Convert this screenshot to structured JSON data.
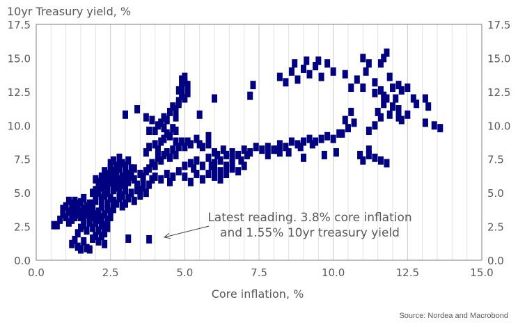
{
  "chart_data": {
    "type": "scatter",
    "title": "10yr Treasury yield, %",
    "xlabel": "Core inflation, %",
    "ylabel": "10yr Treasury yield, %",
    "xlim": [
      0,
      15
    ],
    "ylim": [
      0,
      17.5
    ],
    "xticks": [
      "0.0",
      "2.5",
      "5.0",
      "7.5",
      "10.0",
      "12.5",
      "15.0"
    ],
    "yticks": [
      "0.0",
      "2.5",
      "5.0",
      "7.5",
      "10.0",
      "12.5",
      "15.0",
      "17.5"
    ],
    "grid": "vertical",
    "marker_color": "#000080",
    "annotation": {
      "line1": "Latest reading. 3.8% core inflation",
      "line2": "and 1.55% 10yr treasury yield",
      "target": [
        3.8,
        1.55
      ]
    },
    "points": [
      [
        0.6,
        2.6
      ],
      [
        0.7,
        2.6
      ],
      [
        0.8,
        3.0
      ],
      [
        0.9,
        3.4
      ],
      [
        0.9,
        3.8
      ],
      [
        1.0,
        4.0
      ],
      [
        1.0,
        3.2
      ],
      [
        1.1,
        3.6
      ],
      [
        1.1,
        2.8
      ],
      [
        1.2,
        4.2
      ],
      [
        1.2,
        3.0
      ],
      [
        1.3,
        3.8
      ],
      [
        1.3,
        4.4
      ],
      [
        1.4,
        3.4
      ],
      [
        1.4,
        4.0
      ],
      [
        1.5,
        3.6
      ],
      [
        1.5,
        4.3
      ],
      [
        1.6,
        3.8
      ],
      [
        1.6,
        4.6
      ],
      [
        1.7,
        4.0
      ],
      [
        1.2,
        1.2
      ],
      [
        1.3,
        1.5
      ],
      [
        1.4,
        1.0
      ],
      [
        1.5,
        0.8
      ],
      [
        1.6,
        1.4
      ],
      [
        1.7,
        0.9
      ],
      [
        1.8,
        0.8
      ],
      [
        1.9,
        1.6
      ],
      [
        2.0,
        1.8
      ],
      [
        2.1,
        1.4
      ],
      [
        1.4,
        2.0
      ],
      [
        1.5,
        2.4
      ],
      [
        1.6,
        2.6
      ],
      [
        1.7,
        2.2
      ],
      [
        1.8,
        2.8
      ],
      [
        1.9,
        2.4
      ],
      [
        1.9,
        3.2
      ],
      [
        2.0,
        2.8
      ],
      [
        2.1,
        2.2
      ],
      [
        2.2,
        2.6
      ],
      [
        1.8,
        4.2
      ],
      [
        1.9,
        3.8
      ],
      [
        2.0,
        4.4
      ],
      [
        2.1,
        3.6
      ],
      [
        2.2,
        4.0
      ],
      [
        2.3,
        3.4
      ],
      [
        2.3,
        2.0
      ],
      [
        2.4,
        3.0
      ],
      [
        2.4,
        4.2
      ],
      [
        2.5,
        3.6
      ],
      [
        1.6,
        3.0
      ],
      [
        1.7,
        3.4
      ],
      [
        1.8,
        3.6
      ],
      [
        2.0,
        3.4
      ],
      [
        2.1,
        3.0
      ],
      [
        2.2,
        3.2
      ],
      [
        2.2,
        1.8
      ],
      [
        2.3,
        1.2
      ],
      [
        2.3,
        2.6
      ],
      [
        2.4,
        2.4
      ],
      [
        2.0,
        4.8
      ],
      [
        2.1,
        5.0
      ],
      [
        2.2,
        5.4
      ],
      [
        2.3,
        5.2
      ],
      [
        2.3,
        5.8
      ],
      [
        2.4,
        5.0
      ],
      [
        2.4,
        5.6
      ],
      [
        2.5,
        4.6
      ],
      [
        2.5,
        5.8
      ],
      [
        2.6,
        5.2
      ],
      [
        2.0,
        6.0
      ],
      [
        2.1,
        5.8
      ],
      [
        2.2,
        6.2
      ],
      [
        2.3,
        6.6
      ],
      [
        2.4,
        6.4
      ],
      [
        2.5,
        6.8
      ],
      [
        2.6,
        6.2
      ],
      [
        2.6,
        5.6
      ],
      [
        2.7,
        5.8
      ],
      [
        2.7,
        6.6
      ],
      [
        2.5,
        7.2
      ],
      [
        2.6,
        7.4
      ],
      [
        2.7,
        7.0
      ],
      [
        2.8,
        7.6
      ],
      [
        2.8,
        6.8
      ],
      [
        2.9,
        7.2
      ],
      [
        3.0,
        7.0
      ],
      [
        3.0,
        6.4
      ],
      [
        3.1,
        7.4
      ],
      [
        3.2,
        6.8
      ],
      [
        2.8,
        6.0
      ],
      [
        2.9,
        5.6
      ],
      [
        3.0,
        5.4
      ],
      [
        3.1,
        5.8
      ],
      [
        3.2,
        6.2
      ],
      [
        3.3,
        6.0
      ],
      [
        3.4,
        5.6
      ],
      [
        3.5,
        6.4
      ],
      [
        3.6,
        6.2
      ],
      [
        3.7,
        6.6
      ],
      [
        2.8,
        5.0
      ],
      [
        2.9,
        4.8
      ],
      [
        3.0,
        5.2
      ],
      [
        3.1,
        4.6
      ],
      [
        3.2,
        5.0
      ],
      [
        3.3,
        4.4
      ],
      [
        3.4,
        5.2
      ],
      [
        3.5,
        4.8
      ],
      [
        3.6,
        5.4
      ],
      [
        3.7,
        5.0
      ],
      [
        3.8,
        6.8
      ],
      [
        3.9,
        7.2
      ],
      [
        4.0,
        7.0
      ],
      [
        4.1,
        7.6
      ],
      [
        4.2,
        7.4
      ],
      [
        4.3,
        7.8
      ],
      [
        4.4,
        8.0
      ],
      [
        4.5,
        7.6
      ],
      [
        4.6,
        8.2
      ],
      [
        4.7,
        7.8
      ],
      [
        3.7,
        8.0
      ],
      [
        3.8,
        8.4
      ],
      [
        4.0,
        8.6
      ],
      [
        4.1,
        8.2
      ],
      [
        4.2,
        8.8
      ],
      [
        4.3,
        9.0
      ],
      [
        4.4,
        9.4
      ],
      [
        4.5,
        9.2
      ],
      [
        4.6,
        9.8
      ],
      [
        4.7,
        9.6
      ],
      [
        4.0,
        9.6
      ],
      [
        4.1,
        10.0
      ],
      [
        4.2,
        10.2
      ],
      [
        4.3,
        10.6
      ],
      [
        4.4,
        10.4
      ],
      [
        4.5,
        11.0
      ],
      [
        4.6,
        11.4
      ],
      [
        4.7,
        11.2
      ],
      [
        4.8,
        11.8
      ],
      [
        4.9,
        12.2
      ],
      [
        4.8,
        12.6
      ],
      [
        4.9,
        12.8
      ],
      [
        5.0,
        13.2
      ],
      [
        5.0,
        13.6
      ],
      [
        5.1,
        13.0
      ],
      [
        5.1,
        12.4
      ],
      [
        4.9,
        13.4
      ],
      [
        5.0,
        12.0
      ],
      [
        4.8,
        11.6
      ],
      [
        4.7,
        10.6
      ],
      [
        3.0,
        10.8
      ],
      [
        3.4,
        11.2
      ],
      [
        3.7,
        10.6
      ],
      [
        3.8,
        9.6
      ],
      [
        3.9,
        10.4
      ],
      [
        4.3,
        9.8
      ],
      [
        5.5,
        10.8
      ],
      [
        6.0,
        12.0
      ],
      [
        7.3,
        13.0
      ],
      [
        7.2,
        12.2
      ],
      [
        4.7,
        8.8
      ],
      [
        4.8,
        8.4
      ],
      [
        4.9,
        8.8
      ],
      [
        5.0,
        8.4
      ],
      [
        5.1,
        8.8
      ],
      [
        5.2,
        8.6
      ],
      [
        5.4,
        9.0
      ],
      [
        5.5,
        8.6
      ],
      [
        5.6,
        8.4
      ],
      [
        5.8,
        8.6
      ],
      [
        4.0,
        6.2
      ],
      [
        4.2,
        6.0
      ],
      [
        4.4,
        6.4
      ],
      [
        4.5,
        5.8
      ],
      [
        4.6,
        6.2
      ],
      [
        4.8,
        6.6
      ],
      [
        5.0,
        6.2
      ],
      [
        5.2,
        5.8
      ],
      [
        5.4,
        6.4
      ],
      [
        5.6,
        6.0
      ],
      [
        5.0,
        7.0
      ],
      [
        5.2,
        7.2
      ],
      [
        5.4,
        7.4
      ],
      [
        5.6,
        7.0
      ],
      [
        5.8,
        7.6
      ],
      [
        6.0,
        7.2
      ],
      [
        6.2,
        7.4
      ],
      [
        6.4,
        7.8
      ],
      [
        6.6,
        7.6
      ],
      [
        6.8,
        7.8
      ],
      [
        5.8,
        6.4
      ],
      [
        6.0,
        6.8
      ],
      [
        6.2,
        6.6
      ],
      [
        6.4,
        6.4
      ],
      [
        6.6,
        6.8
      ],
      [
        6.8,
        6.6
      ],
      [
        7.0,
        7.0
      ],
      [
        6.2,
        6.0
      ],
      [
        6.0,
        6.2
      ],
      [
        6.6,
        7.2
      ],
      [
        7.0,
        8.2
      ],
      [
        7.2,
        8.0
      ],
      [
        7.4,
        8.4
      ],
      [
        7.6,
        8.2
      ],
      [
        7.8,
        8.4
      ],
      [
        8.0,
        8.2
      ],
      [
        8.2,
        8.6
      ],
      [
        8.4,
        8.4
      ],
      [
        8.6,
        8.8
      ],
      [
        8.8,
        8.6
      ],
      [
        9.0,
        8.8
      ],
      [
        9.2,
        9.0
      ],
      [
        9.4,
        8.8
      ],
      [
        9.6,
        9.0
      ],
      [
        9.8,
        9.2
      ],
      [
        10.0,
        9.0
      ],
      [
        10.2,
        9.4
      ],
      [
        8.2,
        8.0
      ],
      [
        7.8,
        7.8
      ],
      [
        9.0,
        7.6
      ],
      [
        6.0,
        8.0
      ],
      [
        6.3,
        8.2
      ],
      [
        6.6,
        8.0
      ],
      [
        6.9,
        7.4
      ],
      [
        7.1,
        7.8
      ],
      [
        5.8,
        9.2
      ],
      [
        6.1,
        7.8
      ],
      [
        5.3,
        6.8
      ],
      [
        5.9,
        7.0
      ],
      [
        6.4,
        7.0
      ],
      [
        8.2,
        13.6
      ],
      [
        8.4,
        13.2
      ],
      [
        8.6,
        14.0
      ],
      [
        8.8,
        13.4
      ],
      [
        9.0,
        14.2
      ],
      [
        9.2,
        13.8
      ],
      [
        9.4,
        14.4
      ],
      [
        9.6,
        13.6
      ],
      [
        9.8,
        14.6
      ],
      [
        10.0,
        14.0
      ],
      [
        8.7,
        14.6
      ],
      [
        9.1,
        14.8
      ],
      [
        9.5,
        14.8
      ],
      [
        10.4,
        13.8
      ],
      [
        10.6,
        12.8
      ],
      [
        10.8,
        13.4
      ],
      [
        11.0,
        12.8
      ],
      [
        11.0,
        15.0
      ],
      [
        11.1,
        14.0
      ],
      [
        11.2,
        14.6
      ],
      [
        11.4,
        13.2
      ],
      [
        11.6,
        12.6
      ],
      [
        11.6,
        14.6
      ],
      [
        11.7,
        15.0
      ],
      [
        11.8,
        15.4
      ],
      [
        11.9,
        13.6
      ],
      [
        12.0,
        12.8
      ],
      [
        12.1,
        12.0
      ],
      [
        12.2,
        13.0
      ],
      [
        12.3,
        12.6
      ],
      [
        11.5,
        11.0
      ],
      [
        11.6,
        10.6
      ],
      [
        11.7,
        11.6
      ],
      [
        11.8,
        12.0
      ],
      [
        11.9,
        10.8
      ],
      [
        12.0,
        11.4
      ],
      [
        12.2,
        11.2
      ],
      [
        12.3,
        10.4
      ],
      [
        12.5,
        12.8
      ],
      [
        12.7,
        12.0
      ],
      [
        13.1,
        12.0
      ],
      [
        13.2,
        11.4
      ],
      [
        13.1,
        10.2
      ],
      [
        13.4,
        10.0
      ],
      [
        13.6,
        9.8
      ],
      [
        12.2,
        10.6
      ],
      [
        11.4,
        12.4
      ],
      [
        12.8,
        11.6
      ],
      [
        12.5,
        10.8
      ],
      [
        11.7,
        12.2
      ],
      [
        10.4,
        10.4
      ],
      [
        10.5,
        9.8
      ],
      [
        10.6,
        11.0
      ],
      [
        10.7,
        10.2
      ],
      [
        11.4,
        10.0
      ],
      [
        11.2,
        9.6
      ],
      [
        10.3,
        9.4
      ],
      [
        11.0,
        7.4
      ],
      [
        11.2,
        7.8
      ],
      [
        11.4,
        7.6
      ],
      [
        11.6,
        7.4
      ],
      [
        11.8,
        7.2
      ],
      [
        11.2,
        8.2
      ],
      [
        10.9,
        7.8
      ],
      [
        8.1,
        8.2
      ],
      [
        8.5,
        8.0
      ],
      [
        8.9,
        8.4
      ],
      [
        9.3,
        8.6
      ],
      [
        9.7,
        7.8
      ],
      [
        10.1,
        8.0
      ],
      [
        2.7,
        5.4
      ],
      [
        2.8,
        5.6
      ],
      [
        2.9,
        6.2
      ],
      [
        3.0,
        5.8
      ],
      [
        3.1,
        6.4
      ],
      [
        3.3,
        6.8
      ],
      [
        3.5,
        5.2
      ],
      [
        3.6,
        5.8
      ],
      [
        3.8,
        5.6
      ],
      [
        3.9,
        6.0
      ],
      [
        2.6,
        4.4
      ],
      [
        2.7,
        4.2
      ],
      [
        2.8,
        4.6
      ],
      [
        2.9,
        4.0
      ],
      [
        3.0,
        4.2
      ],
      [
        2.4,
        3.8
      ],
      [
        2.5,
        3.2
      ],
      [
        2.6,
        3.8
      ],
      [
        2.2,
        4.6
      ],
      [
        2.3,
        4.8
      ],
      [
        2.0,
        5.2
      ],
      [
        1.9,
        5.0
      ],
      [
        2.1,
        5.6
      ],
      [
        2.2,
        6.0
      ],
      [
        2.3,
        6.2
      ],
      [
        2.4,
        6.0
      ],
      [
        2.5,
        6.2
      ],
      [
        2.6,
        6.6
      ],
      [
        2.7,
        6.2
      ],
      [
        2.8,
        7.0
      ],
      [
        1.1,
        4.4
      ],
      [
        1.2,
        3.6
      ],
      [
        1.3,
        3.2
      ],
      [
        1.4,
        4.2
      ],
      [
        1.5,
        3.2
      ],
      [
        1.6,
        3.4
      ],
      [
        1.7,
        3.8
      ],
      [
        1.8,
        3.2
      ],
      [
        1.9,
        4.2
      ],
      [
        2.0,
        3.0
      ],
      [
        3.1,
        1.6
      ],
      [
        3.8,
        1.55
      ]
    ]
  },
  "source": "Source: Nordea and Macrobond"
}
